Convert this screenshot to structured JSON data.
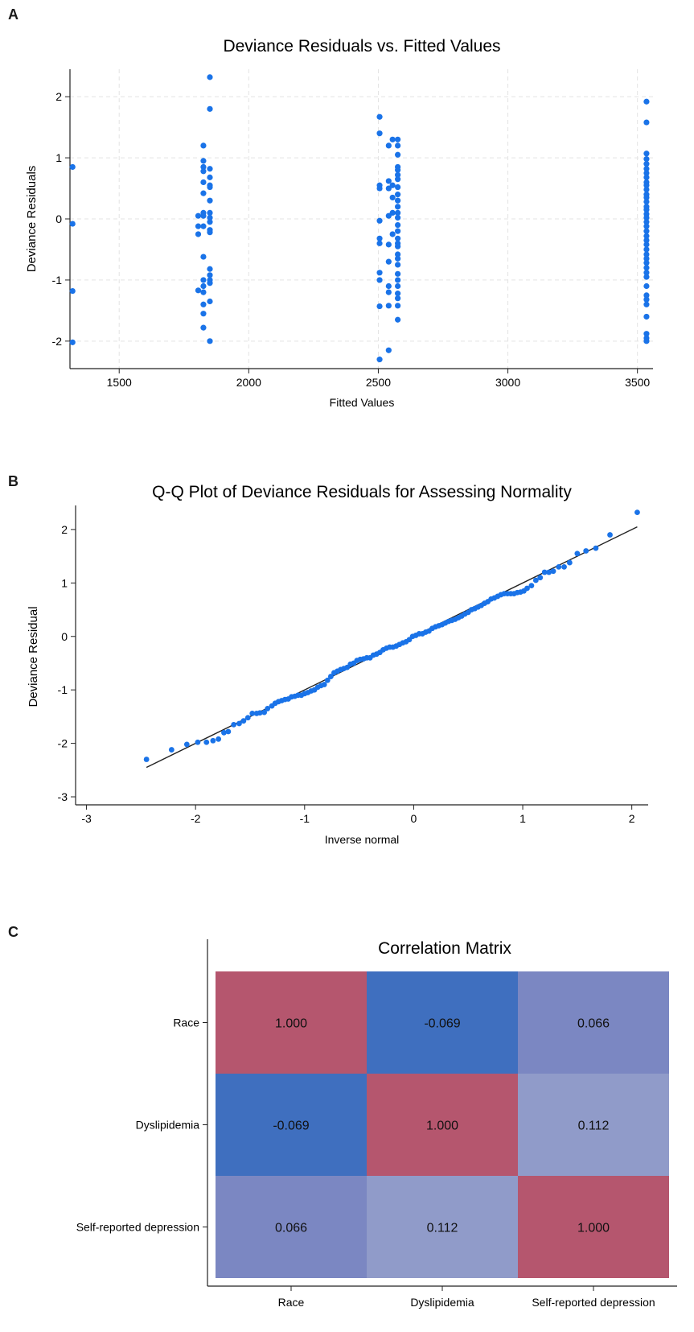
{
  "panels": {
    "a": "A",
    "b": "B",
    "c": "C"
  },
  "colors": {
    "point": "#1a73e8",
    "grid": "#e3e3e3",
    "axis": "#222222",
    "refline": "#222222",
    "cell_diagonal": "#b5566e",
    "cell_neg": "#3f6fbf",
    "cell_pos_low": "#7b87c2",
    "cell_pos_mid": "#909bc9"
  },
  "chart_data": [
    {
      "type": "scatter",
      "title": "Deviance Residuals vs. Fitted Values",
      "xlabel": "Fitted Values",
      "ylabel": "Deviance Residuals",
      "xlim": [
        1310,
        3560
      ],
      "ylim": [
        -2.45,
        2.45
      ],
      "xticks": [
        1500,
        2000,
        2500,
        3000,
        3500
      ],
      "yticks": [
        -2,
        -1,
        0,
        1,
        2
      ],
      "grid": true,
      "series": [
        {
          "points": [
            [
              1320,
              0.85
            ],
            [
              1320,
              -0.08
            ],
            [
              1320,
              -1.18
            ],
            [
              1320,
              -2.02
            ],
            [
              1805,
              0.05
            ],
            [
              1805,
              -0.12
            ],
            [
              1805,
              -0.25
            ],
            [
              1805,
              -1.17
            ],
            [
              1825,
              1.2
            ],
            [
              1825,
              0.95
            ],
            [
              1825,
              0.85
            ],
            [
              1825,
              0.78
            ],
            [
              1825,
              0.6
            ],
            [
              1825,
              0.42
            ],
            [
              1825,
              0.1
            ],
            [
              1825,
              0.05
            ],
            [
              1825,
              -0.12
            ],
            [
              1825,
              -0.62
            ],
            [
              1825,
              -1.0
            ],
            [
              1825,
              -1.1
            ],
            [
              1825,
              -1.2
            ],
            [
              1825,
              -1.4
            ],
            [
              1825,
              -1.55
            ],
            [
              1825,
              -1.78
            ],
            [
              1850,
              2.32
            ],
            [
              1850,
              1.8
            ],
            [
              1850,
              0.82
            ],
            [
              1850,
              0.68
            ],
            [
              1850,
              0.55
            ],
            [
              1850,
              0.52
            ],
            [
              1850,
              0.3
            ],
            [
              1850,
              0.1
            ],
            [
              1850,
              0.02
            ],
            [
              1850,
              -0.05
            ],
            [
              1850,
              -0.18
            ],
            [
              1850,
              -0.22
            ],
            [
              1850,
              -0.82
            ],
            [
              1850,
              -0.92
            ],
            [
              1850,
              -1.0
            ],
            [
              1850,
              -1.05
            ],
            [
              1850,
              -1.35
            ],
            [
              1850,
              -2.0
            ],
            [
              2505,
              1.67
            ],
            [
              2505,
              1.4
            ],
            [
              2505,
              0.55
            ],
            [
              2505,
              0.5
            ],
            [
              2505,
              -0.03
            ],
            [
              2505,
              -0.32
            ],
            [
              2505,
              -0.4
            ],
            [
              2505,
              -0.88
            ],
            [
              2505,
              -1.0
            ],
            [
              2505,
              -1.43
            ],
            [
              2505,
              -2.3
            ],
            [
              2540,
              1.2
            ],
            [
              2540,
              0.62
            ],
            [
              2540,
              0.5
            ],
            [
              2540,
              0.05
            ],
            [
              2540,
              -0.42
            ],
            [
              2540,
              -0.7
            ],
            [
              2540,
              -1.1
            ],
            [
              2540,
              -1.2
            ],
            [
              2540,
              -1.42
            ],
            [
              2540,
              -2.15
            ],
            [
              2555,
              1.3
            ],
            [
              2555,
              0.55
            ],
            [
              2555,
              0.35
            ],
            [
              2555,
              0.1
            ],
            [
              2555,
              -0.25
            ],
            [
              2575,
              1.3
            ],
            [
              2575,
              1.2
            ],
            [
              2575,
              1.05
            ],
            [
              2575,
              0.85
            ],
            [
              2575,
              0.8
            ],
            [
              2575,
              0.72
            ],
            [
              2575,
              0.65
            ],
            [
              2575,
              0.52
            ],
            [
              2575,
              0.4
            ],
            [
              2575,
              0.3
            ],
            [
              2575,
              0.2
            ],
            [
              2575,
              0.1
            ],
            [
              2575,
              0.02
            ],
            [
              2575,
              -0.1
            ],
            [
              2575,
              -0.2
            ],
            [
              2575,
              -0.32
            ],
            [
              2575,
              -0.4
            ],
            [
              2575,
              -0.45
            ],
            [
              2575,
              -0.58
            ],
            [
              2575,
              -0.65
            ],
            [
              2575,
              -0.75
            ],
            [
              2575,
              -0.9
            ],
            [
              2575,
              -1.0
            ],
            [
              2575,
              -1.1
            ],
            [
              2575,
              -1.22
            ],
            [
              2575,
              -1.3
            ],
            [
              2575,
              -1.42
            ],
            [
              2575,
              -1.65
            ],
            [
              3535,
              1.92
            ],
            [
              3535,
              1.58
            ],
            [
              3535,
              1.07
            ],
            [
              3535,
              0.98
            ],
            [
              3535,
              0.9
            ],
            [
              3535,
              0.82
            ],
            [
              3535,
              0.75
            ],
            [
              3535,
              0.68
            ],
            [
              3535,
              0.6
            ],
            [
              3535,
              0.55
            ],
            [
              3535,
              0.48
            ],
            [
              3535,
              0.4
            ],
            [
              3535,
              0.35
            ],
            [
              3535,
              0.28
            ],
            [
              3535,
              0.2
            ],
            [
              3535,
              0.15
            ],
            [
              3535,
              0.08
            ],
            [
              3535,
              0.02
            ],
            [
              3535,
              -0.05
            ],
            [
              3535,
              -0.12
            ],
            [
              3535,
              -0.2
            ],
            [
              3535,
              -0.28
            ],
            [
              3535,
              -0.35
            ],
            [
              3535,
              -0.42
            ],
            [
              3535,
              -0.5
            ],
            [
              3535,
              -0.58
            ],
            [
              3535,
              -0.65
            ],
            [
              3535,
              -0.72
            ],
            [
              3535,
              -0.8
            ],
            [
              3535,
              -0.88
            ],
            [
              3535,
              -0.95
            ],
            [
              3535,
              -1.1
            ],
            [
              3535,
              -1.25
            ],
            [
              3535,
              -1.32
            ],
            [
              3535,
              -1.4
            ],
            [
              3535,
              -1.6
            ],
            [
              3535,
              -1.88
            ],
            [
              3535,
              -1.95
            ],
            [
              3535,
              -2.0
            ]
          ]
        }
      ]
    },
    {
      "type": "scatter",
      "title": "Q-Q Plot of Deviance Residuals for Assessing Normality",
      "xlabel": "Inverse normal",
      "ylabel": "Deviance Residual",
      "xlim": [
        -3.1,
        2.15
      ],
      "ylim": [
        -3.15,
        2.45
      ],
      "xticks": [
        -3,
        -2,
        -1,
        0,
        1,
        2
      ],
      "yticks": [
        -3,
        -2,
        -1,
        0,
        1,
        2
      ],
      "grid": false,
      "reference_line": [
        [
          -2.45,
          -2.45
        ],
        [
          2.05,
          2.05
        ]
      ],
      "series": [
        {
          "points": [
            [
              -2.45,
              -2.3
            ],
            [
              -2.22,
              -2.12
            ],
            [
              -2.08,
              -2.02
            ],
            [
              -1.98,
              -1.98
            ],
            [
              -1.9,
              -1.98
            ],
            [
              -1.84,
              -1.95
            ],
            [
              -1.79,
              -1.92
            ],
            [
              -1.74,
              -1.8
            ],
            [
              -1.7,
              -1.78
            ],
            [
              -1.65,
              -1.65
            ],
            [
              -1.6,
              -1.63
            ],
            [
              -1.56,
              -1.58
            ],
            [
              -1.52,
              -1.52
            ],
            [
              -1.48,
              -1.44
            ],
            [
              -1.44,
              -1.44
            ],
            [
              -1.41,
              -1.43
            ],
            [
              -1.37,
              -1.42
            ],
            [
              -1.34,
              -1.35
            ],
            [
              -1.3,
              -1.3
            ],
            [
              -1.27,
              -1.25
            ],
            [
              -1.24,
              -1.22
            ],
            [
              -1.21,
              -1.2
            ],
            [
              -1.18,
              -1.18
            ],
            [
              -1.15,
              -1.17
            ],
            [
              -1.12,
              -1.13
            ],
            [
              -1.09,
              -1.12
            ],
            [
              -1.06,
              -1.1
            ],
            [
              -1.03,
              -1.1
            ],
            [
              -1.0,
              -1.07
            ],
            [
              -0.97,
              -1.05
            ],
            [
              -0.94,
              -1.02
            ],
            [
              -0.91,
              -1.0
            ],
            [
              -0.88,
              -0.95
            ],
            [
              -0.85,
              -0.92
            ],
            [
              -0.82,
              -0.9
            ],
            [
              -0.79,
              -0.82
            ],
            [
              -0.76,
              -0.75
            ],
            [
              -0.73,
              -0.68
            ],
            [
              -0.7,
              -0.65
            ],
            [
              -0.67,
              -0.62
            ],
            [
              -0.64,
              -0.6
            ],
            [
              -0.61,
              -0.58
            ],
            [
              -0.58,
              -0.52
            ],
            [
              -0.55,
              -0.5
            ],
            [
              -0.52,
              -0.45
            ],
            [
              -0.49,
              -0.43
            ],
            [
              -0.46,
              -0.42
            ],
            [
              -0.43,
              -0.4
            ],
            [
              -0.4,
              -0.4
            ],
            [
              -0.37,
              -0.35
            ],
            [
              -0.34,
              -0.33
            ],
            [
              -0.31,
              -0.3
            ],
            [
              -0.28,
              -0.25
            ],
            [
              -0.25,
              -0.22
            ],
            [
              -0.22,
              -0.2
            ],
            [
              -0.19,
              -0.2
            ],
            [
              -0.16,
              -0.18
            ],
            [
              -0.13,
              -0.15
            ],
            [
              -0.1,
              -0.12
            ],
            [
              -0.07,
              -0.1
            ],
            [
              -0.04,
              -0.06
            ],
            [
              -0.01,
              0.0
            ],
            [
              0.02,
              0.02
            ],
            [
              0.05,
              0.05
            ],
            [
              0.08,
              0.05
            ],
            [
              0.11,
              0.08
            ],
            [
              0.14,
              0.1
            ],
            [
              0.17,
              0.15
            ],
            [
              0.2,
              0.18
            ],
            [
              0.23,
              0.2
            ],
            [
              0.26,
              0.22
            ],
            [
              0.29,
              0.25
            ],
            [
              0.32,
              0.28
            ],
            [
              0.35,
              0.3
            ],
            [
              0.38,
              0.32
            ],
            [
              0.41,
              0.35
            ],
            [
              0.44,
              0.38
            ],
            [
              0.47,
              0.42
            ],
            [
              0.5,
              0.45
            ],
            [
              0.53,
              0.5
            ],
            [
              0.56,
              0.52
            ],
            [
              0.59,
              0.55
            ],
            [
              0.62,
              0.58
            ],
            [
              0.65,
              0.62
            ],
            [
              0.68,
              0.65
            ],
            [
              0.71,
              0.7
            ],
            [
              0.74,
              0.72
            ],
            [
              0.77,
              0.75
            ],
            [
              0.8,
              0.78
            ],
            [
              0.83,
              0.8
            ],
            [
              0.86,
              0.8
            ],
            [
              0.89,
              0.8
            ],
            [
              0.92,
              0.8
            ],
            [
              0.95,
              0.82
            ],
            [
              0.98,
              0.83
            ],
            [
              1.01,
              0.85
            ],
            [
              1.04,
              0.9
            ],
            [
              1.08,
              0.95
            ],
            [
              1.12,
              1.05
            ],
            [
              1.16,
              1.1
            ],
            [
              1.2,
              1.2
            ],
            [
              1.24,
              1.2
            ],
            [
              1.28,
              1.22
            ],
            [
              1.33,
              1.3
            ],
            [
              1.38,
              1.3
            ],
            [
              1.43,
              1.38
            ],
            [
              1.5,
              1.55
            ],
            [
              1.58,
              1.6
            ],
            [
              1.67,
              1.65
            ],
            [
              1.8,
              1.9
            ],
            [
              2.05,
              2.32
            ]
          ]
        }
      ]
    },
    {
      "type": "heatmap",
      "title": "Correlation Matrix",
      "x_categories": [
        "Race",
        "Dyslipidemia",
        "Self-reported depression"
      ],
      "y_categories": [
        "Race",
        "Dyslipidemia",
        "Self-reported depression"
      ],
      "values": [
        [
          1.0,
          -0.069,
          0.066
        ],
        [
          -0.069,
          1.0,
          0.112
        ],
        [
          0.066,
          0.112,
          1.0
        ]
      ],
      "labels": [
        [
          "1.000",
          "-0.069",
          "0.066"
        ],
        [
          "-0.069",
          "1.000",
          "0.112"
        ],
        [
          "0.066",
          "0.112",
          "1.000"
        ]
      ]
    }
  ]
}
